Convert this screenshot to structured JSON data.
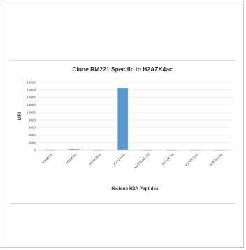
{
  "chart_data": {
    "type": "bar",
    "title": "Clone RM221 Specific to H2AZK4ac",
    "xlabel": "Histone H2A Peptides",
    "ylabel": "MFI",
    "categories": [
      "H2AK5ac",
      "H2AK9ac",
      "H2AK36ac",
      "H2AZK4ac",
      "H2AZ(aa1-19)",
      "H2AZK7ac",
      "H2AZK11ac",
      "H2AZK13ac"
    ],
    "values": [
      30,
      150,
      20,
      16500,
      15,
      15,
      15,
      15
    ],
    "ylim": [
      0,
      18000
    ],
    "yticks": [
      0,
      2000,
      4000,
      6000,
      8000,
      10000,
      12000,
      14000,
      16000,
      18000
    ],
    "grid": true,
    "bar_color": "#5b9bd5",
    "legend": "none"
  }
}
